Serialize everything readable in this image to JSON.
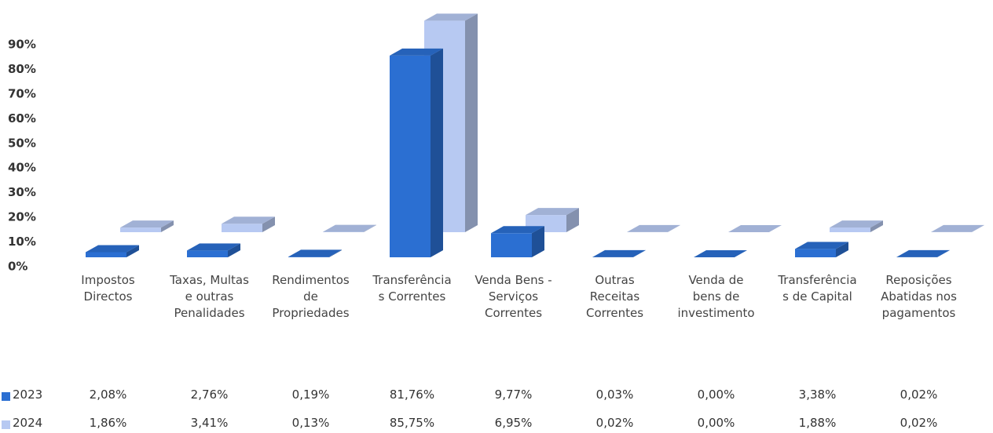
{
  "chart_data": {
    "type": "bar3d",
    "categories": [
      "Impostos Directos",
      "Taxas, Multas e outras Penalidades",
      "Rendimentos de Propriedades",
      "Transferências Correntes",
      "Venda Bens - Serviços Correntes",
      "Outras Receitas Correntes",
      "Venda de bens de investimento",
      "Transferências de Capital",
      "Reposições Abatidas nos pagamentos"
    ],
    "series": [
      {
        "name": "2023",
        "color": "#2b6fd2",
        "values": [
          2.08,
          2.76,
          0.19,
          81.76,
          9.77,
          0.03,
          0.0,
          3.38,
          0.02
        ],
        "value_labels": [
          "2,08%",
          "2,76%",
          "0,19%",
          "81,76%",
          "9,77%",
          "0,03%",
          "0,00%",
          "3,38%",
          "0,02%"
        ]
      },
      {
        "name": "2024",
        "color": "#b7c9f2",
        "values": [
          1.86,
          3.41,
          0.13,
          85.75,
          6.95,
          0.02,
          0.0,
          1.88,
          0.02
        ],
        "value_labels": [
          "1,86%",
          "3,41%",
          "0,13%",
          "85,75%",
          "6,95%",
          "0,02%",
          "0,00%",
          "1,88%",
          "0,02%"
        ]
      }
    ],
    "ylim": [
      0,
      90
    ],
    "yticks": [
      {
        "value": 0,
        "label": "0%"
      },
      {
        "value": 10,
        "label": "10%"
      },
      {
        "value": 20,
        "label": "20%"
      },
      {
        "value": 30,
        "label": "30%"
      },
      {
        "value": 40,
        "label": "40%"
      },
      {
        "value": 50,
        "label": "50%"
      },
      {
        "value": 60,
        "label": "60%"
      },
      {
        "value": 70,
        "label": "70%"
      },
      {
        "value": 80,
        "label": "80%"
      },
      {
        "value": 90,
        "label": "90%"
      }
    ],
    "grid": false,
    "data_table": true
  }
}
